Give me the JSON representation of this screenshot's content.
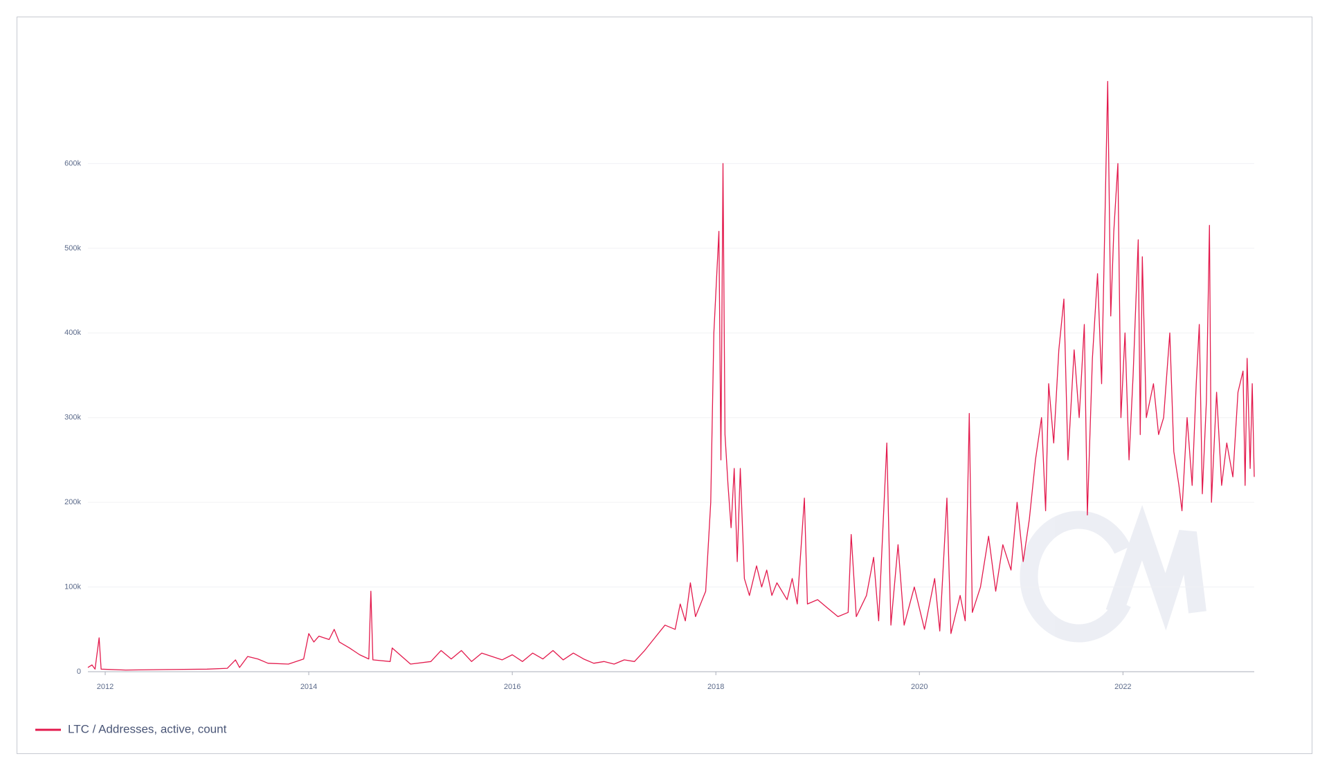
{
  "chart_data": {
    "type": "line",
    "xlim": [
      2011.83,
      2023.29
    ],
    "xticks": [
      2012,
      2014,
      2016,
      2018,
      2020,
      2022
    ],
    "ylim": [
      0,
      700000
    ],
    "yticks": [
      0,
      {
        "value": 100000,
        "label": "100k"
      },
      {
        "value": 200000,
        "label": "200k"
      },
      {
        "value": 300000,
        "label": "300k"
      },
      {
        "value": 400000,
        "label": "400k"
      },
      {
        "value": 500000,
        "label": "500k"
      },
      {
        "value": 600000,
        "label": "600k"
      }
    ],
    "grid": true,
    "legend": "bottom-left",
    "x": [
      2011.83,
      2011.87,
      2011.9,
      2011.94,
      2011.96,
      2012.2,
      2012.6,
      2013.0,
      2013.2,
      2013.28,
      2013.32,
      2013.4,
      2013.5,
      2013.6,
      2013.8,
      2013.95,
      2014.0,
      2014.05,
      2014.1,
      2014.2,
      2014.25,
      2014.3,
      2014.4,
      2014.5,
      2014.59,
      2014.61,
      2014.63,
      2014.8,
      2014.82,
      2015.0,
      2015.2,
      2015.3,
      2015.4,
      2015.5,
      2015.6,
      2015.7,
      2015.9,
      2016.0,
      2016.1,
      2016.2,
      2016.3,
      2016.4,
      2016.5,
      2016.6,
      2016.7,
      2016.8,
      2016.9,
      2017.0,
      2017.1,
      2017.2,
      2017.3,
      2017.4,
      2017.5,
      2017.6,
      2017.65,
      2017.7,
      2017.75,
      2017.8,
      2017.85,
      2017.9,
      2017.95,
      2017.98,
      2018.03,
      2018.05,
      2018.07,
      2018.09,
      2018.12,
      2018.15,
      2018.18,
      2018.21,
      2018.24,
      2018.28,
      2018.33,
      2018.4,
      2018.45,
      2018.5,
      2018.55,
      2018.6,
      2018.7,
      2018.75,
      2018.8,
      2018.87,
      2018.9,
      2019.0,
      2019.1,
      2019.2,
      2019.3,
      2019.33,
      2019.38,
      2019.48,
      2019.55,
      2019.6,
      2019.68,
      2019.72,
      2019.79,
      2019.85,
      2019.95,
      2020.05,
      2020.15,
      2020.2,
      2020.27,
      2020.31,
      2020.4,
      2020.45,
      2020.49,
      2020.52,
      2020.6,
      2020.68,
      2020.75,
      2020.82,
      2020.9,
      2020.96,
      2021.02,
      2021.08,
      2021.14,
      2021.2,
      2021.24,
      2021.27,
      2021.32,
      2021.37,
      2021.42,
      2021.46,
      2021.52,
      2021.57,
      2021.62,
      2021.65,
      2021.7,
      2021.75,
      2021.79,
      2021.85,
      2021.88,
      2021.91,
      2021.95,
      2021.98,
      2022.02,
      2022.06,
      2022.1,
      2022.15,
      2022.17,
      2022.19,
      2022.23,
      2022.3,
      2022.35,
      2022.4,
      2022.46,
      2022.5,
      2022.55,
      2022.58,
      2022.63,
      2022.68,
      2022.72,
      2022.75,
      2022.78,
      2022.82,
      2022.85,
      2022.87,
      2022.92,
      2022.97,
      2023.02,
      2023.08,
      2023.13,
      2023.18,
      2023.2,
      2023.22,
      2023.25,
      2023.27,
      2023.29
    ],
    "series": [
      {
        "name": "LTC / Addresses, active, count",
        "color": "#e3194c",
        "values": [
          5000,
          8000,
          3000,
          40000,
          3000,
          2000,
          2500,
          3000,
          4000,
          14000,
          5000,
          18000,
          15000,
          10000,
          9000,
          15000,
          45000,
          35000,
          42000,
          38000,
          50000,
          35000,
          28000,
          20000,
          15000,
          95000,
          14000,
          12000,
          28000,
          9000,
          12000,
          25000,
          15000,
          25000,
          12000,
          22000,
          14000,
          20000,
          12000,
          22000,
          15000,
          25000,
          14000,
          22000,
          15000,
          10000,
          12000,
          9000,
          14000,
          12000,
          25000,
          40000,
          55000,
          50000,
          80000,
          60000,
          105000,
          65000,
          80000,
          95000,
          200000,
          400000,
          520000,
          250000,
          600000,
          280000,
          220000,
          170000,
          240000,
          130000,
          240000,
          110000,
          90000,
          125000,
          100000,
          120000,
          90000,
          105000,
          85000,
          110000,
          80000,
          205000,
          80000,
          85000,
          75000,
          65000,
          70000,
          162000,
          65000,
          90000,
          135000,
          60000,
          270000,
          55000,
          150000,
          55000,
          100000,
          50000,
          110000,
          48000,
          205000,
          45000,
          90000,
          60000,
          305000,
          70000,
          100000,
          160000,
          95000,
          150000,
          120000,
          200000,
          130000,
          180000,
          250000,
          300000,
          190000,
          340000,
          270000,
          380000,
          440000,
          250000,
          380000,
          300000,
          410000,
          185000,
          370000,
          470000,
          340000,
          697000,
          420000,
          520000,
          600000,
          300000,
          400000,
          250000,
          350000,
          510000,
          280000,
          490000,
          300000,
          340000,
          280000,
          300000,
          400000,
          260000,
          220000,
          190000,
          300000,
          220000,
          340000,
          410000,
          210000,
          320000,
          527000,
          200000,
          330000,
          220000,
          270000,
          230000,
          330000,
          355000,
          220000,
          370000,
          240000,
          340000,
          230000
        ]
      }
    ]
  }
}
